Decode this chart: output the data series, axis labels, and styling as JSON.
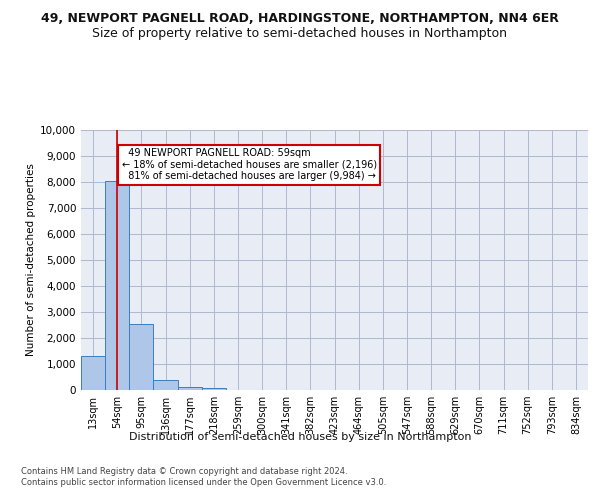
{
  "title": "49, NEWPORT PAGNELL ROAD, HARDINGSTONE, NORTHAMPTON, NN4 6ER",
  "subtitle": "Size of property relative to semi-detached houses in Northampton",
  "xlabel_bottom": "Distribution of semi-detached houses by size in Northampton",
  "ylabel": "Number of semi-detached properties",
  "footnote": "Contains HM Land Registry data © Crown copyright and database right 2024.\nContains public sector information licensed under the Open Government Licence v3.0.",
  "categories": [
    "13sqm",
    "54sqm",
    "95sqm",
    "136sqm",
    "177sqm",
    "218sqm",
    "259sqm",
    "300sqm",
    "341sqm",
    "382sqm",
    "423sqm",
    "464sqm",
    "505sqm",
    "547sqm",
    "588sqm",
    "629sqm",
    "670sqm",
    "711sqm",
    "752sqm",
    "793sqm",
    "834sqm"
  ],
  "bar_values": [
    1320,
    8050,
    2530,
    390,
    130,
    80,
    0,
    0,
    0,
    0,
    0,
    0,
    0,
    0,
    0,
    0,
    0,
    0,
    0,
    0,
    0
  ],
  "bar_color": "#aec6e8",
  "bar_edge_color": "#3a7ebf",
  "vline_pos": 1.0,
  "property_label": "49 NEWPORT PAGNELL ROAD: 59sqm",
  "pct_smaller": "18%",
  "n_smaller": "2,196",
  "pct_larger": "81%",
  "n_larger": "9,984",
  "annotation_box_color": "#ffffff",
  "annotation_box_edge": "#cc0000",
  "vline_color": "#cc0000",
  "ylim": [
    0,
    10000
  ],
  "yticks": [
    0,
    1000,
    2000,
    3000,
    4000,
    5000,
    6000,
    7000,
    8000,
    9000,
    10000
  ],
  "grid_color": "#b0b8d0",
  "bg_color": "#e8edf5",
  "title_fontsize": 9,
  "subtitle_fontsize": 9,
  "footnote_fontsize": 6
}
